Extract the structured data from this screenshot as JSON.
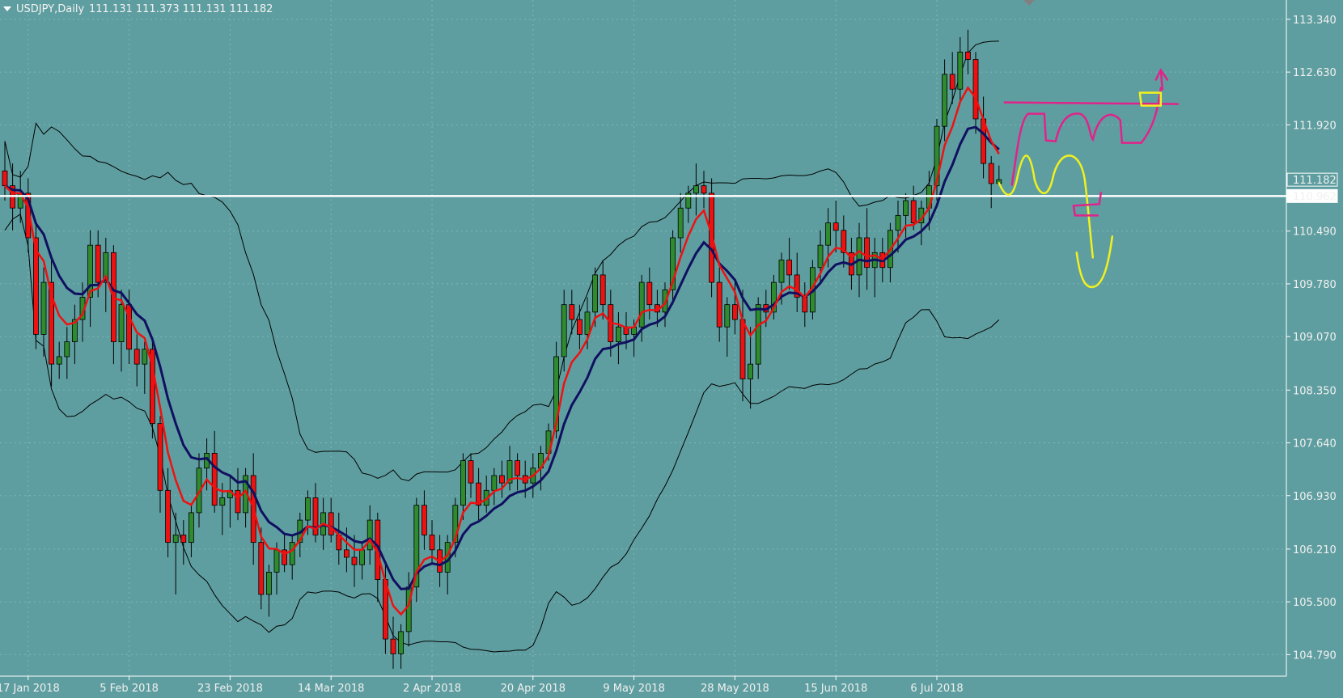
{
  "header": {
    "symbol": "USDJPY",
    "timeframe": "Daily",
    "ohlc": "111.131 111.373 111.131 111.182"
  },
  "colors": {
    "background": "#5f9ea0",
    "bull": "#2e8b2e",
    "bear": "#ee1111",
    "wick": "#000000",
    "ma_fast": "#ee1111",
    "ma_slow": "#101060",
    "bands": "#000000",
    "hline": "#ffffff",
    "pen_magenta": "#e0238a",
    "pen_yellow": "#f0f020"
  },
  "price_tags": {
    "current": "111.182",
    "line": "110.962"
  },
  "chart_data": {
    "type": "candlestick",
    "title": "USDJPY,Daily",
    "ylim": [
      104.5,
      113.6
    ],
    "y_ticks": [
      "113.340",
      "112.630",
      "111.920",
      "111.182",
      "110.962",
      "110.490",
      "109.780",
      "109.070",
      "108.350",
      "107.640",
      "106.930",
      "106.210",
      "105.500",
      "104.790"
    ],
    "x_ticks": [
      "17 Jan 2018",
      "5 Feb 2018",
      "23 Feb 2018",
      "14 Mar 2018",
      "2 Apr 2018",
      "20 Apr 2018",
      "9 May 2018",
      "28 May 2018",
      "15 Jun 2018",
      "6 Jul 2018"
    ],
    "horizontal_line": 110.962,
    "candles": [
      [
        111.3,
        111.7,
        110.9,
        111.1
      ],
      [
        111.1,
        111.4,
        110.5,
        110.8
      ],
      [
        110.8,
        111.3,
        110.6,
        111.0
      ],
      [
        111.0,
        111.2,
        110.2,
        110.4
      ],
      [
        110.4,
        110.6,
        108.9,
        109.1
      ],
      [
        109.1,
        110.0,
        108.8,
        109.8
      ],
      [
        109.8,
        110.1,
        108.4,
        108.7
      ],
      [
        108.7,
        109.0,
        108.5,
        108.8
      ],
      [
        108.8,
        109.2,
        108.5,
        109.0
      ],
      [
        109.0,
        109.5,
        108.7,
        109.3
      ],
      [
        109.3,
        109.8,
        109.0,
        109.6
      ],
      [
        109.6,
        110.5,
        109.2,
        110.3
      ],
      [
        110.3,
        110.5,
        109.6,
        109.8
      ],
      [
        109.8,
        110.4,
        109.4,
        110.2
      ],
      [
        110.2,
        110.3,
        108.7,
        109.0
      ],
      [
        109.0,
        109.7,
        108.6,
        109.5
      ],
      [
        109.5,
        109.7,
        108.7,
        108.9
      ],
      [
        108.9,
        109.1,
        108.4,
        108.7
      ],
      [
        108.7,
        109.0,
        108.3,
        108.9
      ],
      [
        108.9,
        109.0,
        107.7,
        107.9
      ],
      [
        107.9,
        108.0,
        106.7,
        107.0
      ],
      [
        107.0,
        107.3,
        106.1,
        106.3
      ],
      [
        106.3,
        106.7,
        105.6,
        106.4
      ],
      [
        106.4,
        106.6,
        106.0,
        106.3
      ],
      [
        106.3,
        106.8,
        106.1,
        106.7
      ],
      [
        106.7,
        107.5,
        106.5,
        107.3
      ],
      [
        107.3,
        107.7,
        107.0,
        107.5
      ],
      [
        107.5,
        107.8,
        106.7,
        106.8
      ],
      [
        106.8,
        107.1,
        106.4,
        106.9
      ],
      [
        106.9,
        107.2,
        106.5,
        107.0
      ],
      [
        107.0,
        107.3,
        106.6,
        106.7
      ],
      [
        106.7,
        107.3,
        106.5,
        107.2
      ],
      [
        107.2,
        107.5,
        106.0,
        106.3
      ],
      [
        106.3,
        106.5,
        105.4,
        105.6
      ],
      [
        105.6,
        106.0,
        105.3,
        105.9
      ],
      [
        105.9,
        106.3,
        105.6,
        106.2
      ],
      [
        106.2,
        106.4,
        105.9,
        106.0
      ],
      [
        106.0,
        106.4,
        105.8,
        106.3
      ],
      [
        106.3,
        106.7,
        106.1,
        106.6
      ],
      [
        106.6,
        107.0,
        106.4,
        106.9
      ],
      [
        106.9,
        107.1,
        106.3,
        106.4
      ],
      [
        106.4,
        106.9,
        106.2,
        106.7
      ],
      [
        106.7,
        106.9,
        106.3,
        106.4
      ],
      [
        106.4,
        106.7,
        106.0,
        106.2
      ],
      [
        106.2,
        106.5,
        105.9,
        106.1
      ],
      [
        106.1,
        106.4,
        105.7,
        106.0
      ],
      [
        106.0,
        106.3,
        105.8,
        106.2
      ],
      [
        106.2,
        106.8,
        106.0,
        106.6
      ],
      [
        106.6,
        106.7,
        105.5,
        105.8
      ],
      [
        105.8,
        106.0,
        104.8,
        105.0
      ],
      [
        105.0,
        105.3,
        104.6,
        104.8
      ],
      [
        104.8,
        105.2,
        104.6,
        105.1
      ],
      [
        105.1,
        105.9,
        104.9,
        105.7
      ],
      [
        105.7,
        106.9,
        105.5,
        106.8
      ],
      [
        106.8,
        107.0,
        106.2,
        106.4
      ],
      [
        106.4,
        106.6,
        106.0,
        106.2
      ],
      [
        106.2,
        106.4,
        105.7,
        105.9
      ],
      [
        105.9,
        106.4,
        105.6,
        106.3
      ],
      [
        106.3,
        106.9,
        106.1,
        106.8
      ],
      [
        106.8,
        107.5,
        106.6,
        107.4
      ],
      [
        107.4,
        107.5,
        106.9,
        107.1
      ],
      [
        107.1,
        107.3,
        106.6,
        106.8
      ],
      [
        106.8,
        107.2,
        106.7,
        107.0
      ],
      [
        107.0,
        107.3,
        106.8,
        107.2
      ],
      [
        107.2,
        107.4,
        106.9,
        107.1
      ],
      [
        107.1,
        107.6,
        107.0,
        107.4
      ],
      [
        107.4,
        107.5,
        107.0,
        107.2
      ],
      [
        107.2,
        107.4,
        106.9,
        107.1
      ],
      [
        107.1,
        107.5,
        106.9,
        107.3
      ],
      [
        107.3,
        107.6,
        107.0,
        107.5
      ],
      [
        107.5,
        107.9,
        107.4,
        107.8
      ],
      [
        107.8,
        109.0,
        107.7,
        108.8
      ],
      [
        108.8,
        109.7,
        108.6,
        109.5
      ],
      [
        109.5,
        109.7,
        109.1,
        109.3
      ],
      [
        109.3,
        109.5,
        108.9,
        109.1
      ],
      [
        109.1,
        109.6,
        108.9,
        109.4
      ],
      [
        109.4,
        110.0,
        109.2,
        109.9
      ],
      [
        109.9,
        110.1,
        109.3,
        109.5
      ],
      [
        109.5,
        109.7,
        108.8,
        109.0
      ],
      [
        109.0,
        109.4,
        108.7,
        109.2
      ],
      [
        109.2,
        109.4,
        108.9,
        109.1
      ],
      [
        109.1,
        109.3,
        108.8,
        109.2
      ],
      [
        109.2,
        109.9,
        109.0,
        109.8
      ],
      [
        109.8,
        110.0,
        109.3,
        109.5
      ],
      [
        109.5,
        109.7,
        109.2,
        109.4
      ],
      [
        109.4,
        109.8,
        109.2,
        109.7
      ],
      [
        109.7,
        110.5,
        109.5,
        110.4
      ],
      [
        110.4,
        111.0,
        110.2,
        110.8
      ],
      [
        110.8,
        111.1,
        110.6,
        111.0
      ],
      [
        111.0,
        111.4,
        110.7,
        111.1
      ],
      [
        111.1,
        111.3,
        110.8,
        111.0
      ],
      [
        111.0,
        111.2,
        109.6,
        109.8
      ],
      [
        109.8,
        110.0,
        109.0,
        109.2
      ],
      [
        109.2,
        109.6,
        108.8,
        109.5
      ],
      [
        109.5,
        109.8,
        109.1,
        109.3
      ],
      [
        109.3,
        109.7,
        108.2,
        108.5
      ],
      [
        108.5,
        109.2,
        108.1,
        108.7
      ],
      [
        108.7,
        109.6,
        108.5,
        109.5
      ],
      [
        109.5,
        109.7,
        109.2,
        109.4
      ],
      [
        109.4,
        109.9,
        109.3,
        109.8
      ],
      [
        109.8,
        110.2,
        109.5,
        110.1
      ],
      [
        110.1,
        110.4,
        109.7,
        109.9
      ],
      [
        109.9,
        110.2,
        109.4,
        109.6
      ],
      [
        109.6,
        109.8,
        109.2,
        109.4
      ],
      [
        109.4,
        110.1,
        109.3,
        110.0
      ],
      [
        110.0,
        110.5,
        109.8,
        110.3
      ],
      [
        110.3,
        110.8,
        110.0,
        110.6
      ],
      [
        110.6,
        110.9,
        110.2,
        110.5
      ],
      [
        110.5,
        110.7,
        110.0,
        110.2
      ],
      [
        110.2,
        110.4,
        109.7,
        109.9
      ],
      [
        109.9,
        110.6,
        109.6,
        110.4
      ],
      [
        110.4,
        110.8,
        109.7,
        110.0
      ],
      [
        110.0,
        110.4,
        109.6,
        110.2
      ],
      [
        110.2,
        110.4,
        109.8,
        110.0
      ],
      [
        110.0,
        110.6,
        109.8,
        110.5
      ],
      [
        110.5,
        110.9,
        110.2,
        110.7
      ],
      [
        110.7,
        111.0,
        110.4,
        110.9
      ],
      [
        110.9,
        111.1,
        110.5,
        110.6
      ],
      [
        110.6,
        110.9,
        110.3,
        110.8
      ],
      [
        110.8,
        111.3,
        110.5,
        111.1
      ],
      [
        111.1,
        112.0,
        110.9,
        111.9
      ],
      [
        111.9,
        112.8,
        111.7,
        112.6
      ],
      [
        112.6,
        112.9,
        112.2,
        112.4
      ],
      [
        112.4,
        113.1,
        112.2,
        112.9
      ],
      [
        112.9,
        113.2,
        112.6,
        112.8
      ],
      [
        112.8,
        112.9,
        111.8,
        112.0
      ],
      [
        112.0,
        112.3,
        111.2,
        111.4
      ],
      [
        111.4,
        111.5,
        110.8,
        111.13
      ],
      [
        111.131,
        111.373,
        111.131,
        111.182
      ]
    ]
  },
  "annotations": {
    "magenta_resistance_price": 112.2
  }
}
